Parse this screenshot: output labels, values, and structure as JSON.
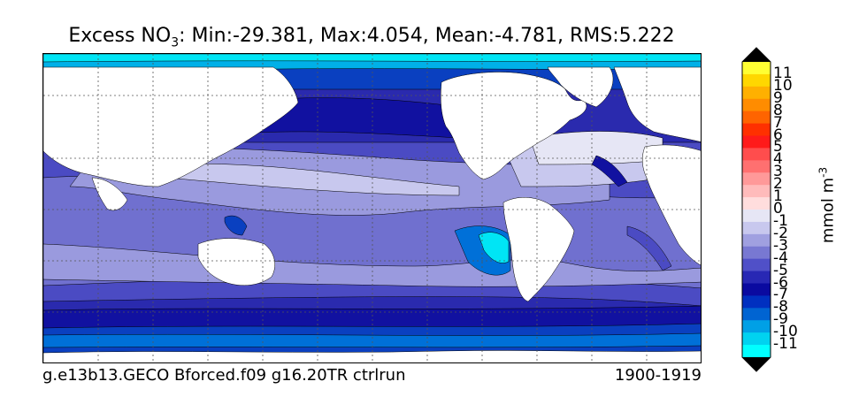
{
  "title": {
    "prefix": "Excess NO",
    "subscript": "3",
    "stats": ": Min:-29.381, Max:4.054, Mean:-4.781, RMS:5.222"
  },
  "footer": {
    "run_name": "g.e13b13.GECO Bforced.f09 g16.20TR ctrlrun",
    "years": "1900-1919"
  },
  "colorbar": {
    "units_base": "mmol m",
    "units_exp": "-3",
    "labels": [
      "11",
      "10",
      "9",
      "8",
      "7",
      "6",
      "5",
      "4",
      "3",
      "2",
      "1",
      "0",
      "-1",
      "-2",
      "-3",
      "-4",
      "-5",
      "-6",
      "-7",
      "-8",
      "-9",
      "-10",
      "-11"
    ],
    "colors": [
      "#ffff33",
      "#ffd700",
      "#ffb000",
      "#ff8c00",
      "#ff6400",
      "#ff3000",
      "#ff1a1a",
      "#ff4d4d",
      "#ff7070",
      "#ff9999",
      "#ffbbbb",
      "#ffdddd",
      "#e6e6f5",
      "#c8c8ee",
      "#a0a0e0",
      "#7878d2",
      "#5050c8",
      "#2828b4",
      "#0a0aa0",
      "#0030c0",
      "#0064d2",
      "#00a0e6",
      "#00d2f0",
      "#00ffff"
    ],
    "over_color": "#000000",
    "under_color": "#000000"
  },
  "map_colors": {
    "land": "#ffffff",
    "gt0": "#ff8080",
    "m1": "#e6e6f5",
    "m2": "#c8c8ee",
    "m3": "#9a9ade",
    "m4": "#7070cf",
    "m5": "#4b4bc3",
    "m6": "#2a2aae",
    "m7": "#1111a0",
    "m8": "#0a40c0",
    "m9": "#0070d8",
    "m10": "#00b0e8",
    "m11": "#00e5f5",
    "lt_m11": "#000000"
  }
}
